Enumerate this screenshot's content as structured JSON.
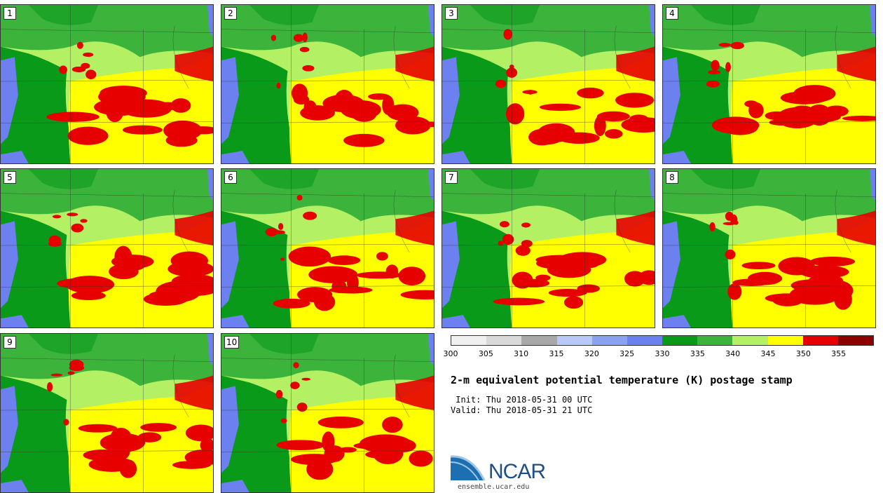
{
  "panels": [
    {
      "label": "1"
    },
    {
      "label": "2"
    },
    {
      "label": "3"
    },
    {
      "label": "4"
    },
    {
      "label": "5"
    },
    {
      "label": "6"
    },
    {
      "label": "7"
    },
    {
      "label": "8"
    },
    {
      "label": "9"
    },
    {
      "label": "10"
    }
  ],
  "colorbar": {
    "colors": [
      "#f0f0f0",
      "#d9d9d9",
      "#a8a8a8",
      "#b8c8f8",
      "#8aa0f0",
      "#6c80f0",
      "#0a9a1a",
      "#3cb43c",
      "#b4f064",
      "#ffff00",
      "#e60000",
      "#8c0000"
    ],
    "ticks": [
      "300",
      "305",
      "310",
      "315",
      "320",
      "325",
      "330",
      "335",
      "340",
      "345",
      "350",
      "355"
    ]
  },
  "title": "2-m equivalent potential temperature (K) postage stamp",
  "init_text": " Init: Thu 2018-05-31 00 UTC",
  "valid_text": "Valid: Thu 2018-05-31 21 UTC",
  "logo": {
    "text": "NCAR",
    "url": "ensemble.ucar.edu"
  }
}
